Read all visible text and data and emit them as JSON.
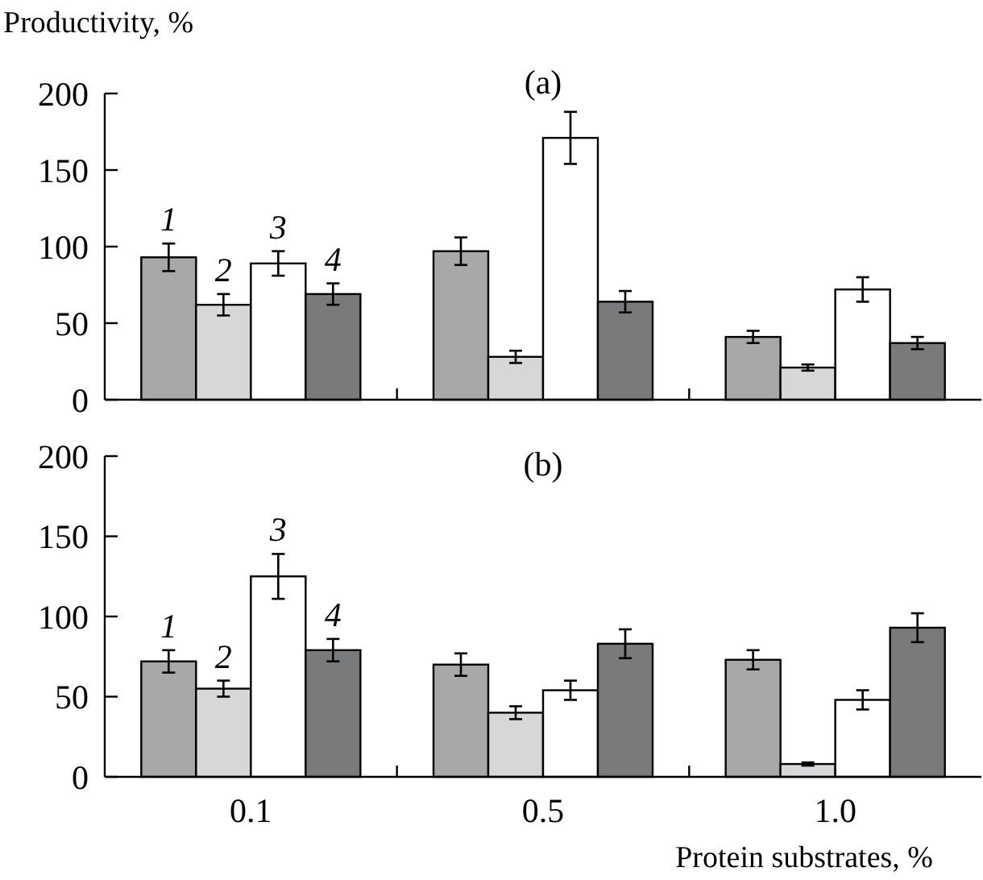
{
  "chart_data": [
    {
      "type": "bar",
      "title": "(a)",
      "ylabel": "Productivity, %",
      "categories": [
        "0.1",
        "0.5",
        "1.0"
      ],
      "ylim": [
        0,
        200
      ],
      "yticks": [
        0,
        50,
        100,
        150,
        200
      ],
      "tick_labels": "y",
      "series": [
        {
          "name": "1",
          "color": "#a8a8a8",
          "values": [
            93,
            97,
            41
          ],
          "errors": [
            9,
            9,
            4
          ]
        },
        {
          "name": "2",
          "color": "#d6d7d8",
          "values": [
            62,
            28,
            21
          ],
          "errors": [
            7,
            4,
            2
          ]
        },
        {
          "name": "3",
          "color": "#ffffff",
          "values": [
            89,
            171,
            72
          ],
          "errors": [
            8,
            17,
            8
          ]
        },
        {
          "name": "4",
          "color": "#797a7b",
          "values": [
            69,
            64,
            37
          ],
          "errors": [
            7,
            7,
            4
          ]
        }
      ]
    },
    {
      "type": "bar",
      "title": "(b)",
      "xlabel": "Protein substrates, %",
      "categories": [
        "0.1",
        "0.5",
        "1.0"
      ],
      "ylim": [
        0,
        200
      ],
      "yticks": [
        0,
        50,
        100,
        150,
        200
      ],
      "series": [
        {
          "name": "1",
          "color": "#a8a8a8",
          "values": [
            72,
            70,
            73
          ],
          "errors": [
            7,
            7,
            6
          ]
        },
        {
          "name": "2",
          "color": "#d6d7d8",
          "values": [
            55,
            40,
            8
          ],
          "errors": [
            5,
            4,
            1
          ]
        },
        {
          "name": "3",
          "color": "#ffffff",
          "values": [
            125,
            54,
            48
          ],
          "errors": [
            14,
            6,
            6
          ]
        },
        {
          "name": "4",
          "color": "#797a7b",
          "values": [
            79,
            83,
            93
          ],
          "errors": [
            7,
            9,
            9
          ]
        }
      ]
    }
  ]
}
